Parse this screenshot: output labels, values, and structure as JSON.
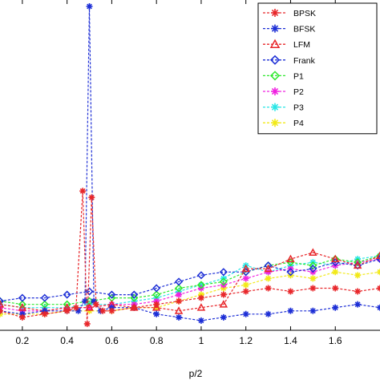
{
  "chart_data": {
    "type": "line",
    "xlabel": "p/2",
    "xlim": [
      0.1,
      1.8
    ],
    "ylim": [
      0,
      1
    ],
    "x_ticks": [
      "0.2",
      "0.4",
      "0.6",
      "0.8",
      "1",
      "1.2",
      "1.4",
      "1.6"
    ],
    "x_tick_values": [
      0.2,
      0.4,
      0.6,
      0.8,
      1.0,
      1.2,
      1.4,
      1.6
    ],
    "legend_position": "top-right",
    "series": [
      {
        "name": "BPSK",
        "color": "#e8272b",
        "marker": "star",
        "x": [
          0.1,
          0.2,
          0.3,
          0.4,
          0.44,
          0.47,
          0.49,
          0.51,
          0.53,
          0.56,
          0.6,
          0.7,
          0.8,
          0.9,
          1.0,
          1.1,
          1.2,
          1.3,
          1.4,
          1.5,
          1.6,
          1.7,
          1.8
        ],
        "y": [
          0.06,
          0.04,
          0.05,
          0.06,
          0.07,
          0.43,
          0.02,
          0.41,
          0.08,
          0.06,
          0.06,
          0.07,
          0.08,
          0.09,
          0.1,
          0.11,
          0.12,
          0.13,
          0.12,
          0.13,
          0.13,
          0.12,
          0.13
        ]
      },
      {
        "name": "BFSK",
        "color": "#1d2fd6",
        "marker": "star",
        "x": [
          0.1,
          0.2,
          0.3,
          0.4,
          0.45,
          0.48,
          0.5,
          0.52,
          0.55,
          0.6,
          0.7,
          0.8,
          0.9,
          1.0,
          1.1,
          1.2,
          1.3,
          1.4,
          1.5,
          1.6,
          1.7,
          1.8
        ],
        "y": [
          0.06,
          0.05,
          0.06,
          0.06,
          0.06,
          0.09,
          1.0,
          0.09,
          0.06,
          0.07,
          0.07,
          0.05,
          0.04,
          0.03,
          0.04,
          0.05,
          0.05,
          0.06,
          0.06,
          0.07,
          0.08,
          0.07
        ]
      },
      {
        "name": "LFM",
        "color": "#e8272b",
        "marker": "triangle",
        "x": [
          0.1,
          0.2,
          0.3,
          0.4,
          0.5,
          0.6,
          0.7,
          0.8,
          0.9,
          1.0,
          1.1,
          1.2,
          1.3,
          1.4,
          1.5,
          1.6,
          1.7,
          1.8
        ],
        "y": [
          0.08,
          0.07,
          0.06,
          0.07,
          0.07,
          0.08,
          0.07,
          0.07,
          0.06,
          0.07,
          0.08,
          0.19,
          0.19,
          0.22,
          0.24,
          0.22,
          0.2,
          0.23
        ]
      },
      {
        "name": "Frank",
        "color": "#1d2fd6",
        "marker": "diamond",
        "x": [
          0.1,
          0.2,
          0.3,
          0.4,
          0.5,
          0.6,
          0.7,
          0.8,
          0.9,
          1.0,
          1.1,
          1.2,
          1.3,
          1.4,
          1.5,
          1.6,
          1.7,
          1.8
        ],
        "y": [
          0.09,
          0.1,
          0.1,
          0.11,
          0.12,
          0.11,
          0.11,
          0.13,
          0.15,
          0.17,
          0.18,
          0.18,
          0.2,
          0.18,
          0.19,
          0.21,
          0.2,
          0.22
        ]
      },
      {
        "name": "P1",
        "color": "#2ee82e",
        "marker": "diamond",
        "x": [
          0.1,
          0.2,
          0.3,
          0.4,
          0.5,
          0.6,
          0.7,
          0.8,
          0.9,
          1.0,
          1.1,
          1.2,
          1.3,
          1.4,
          1.5,
          1.6,
          1.7,
          1.8
        ],
        "y": [
          0.09,
          0.08,
          0.08,
          0.08,
          0.09,
          0.1,
          0.1,
          0.11,
          0.13,
          0.14,
          0.15,
          0.18,
          0.2,
          0.21,
          0.2,
          0.22,
          0.21,
          0.23
        ]
      },
      {
        "name": "P2",
        "color": "#f021e0",
        "marker": "star",
        "x": [
          0.1,
          0.2,
          0.3,
          0.4,
          0.5,
          0.6,
          0.7,
          0.8,
          0.9,
          1.0,
          1.1,
          1.2,
          1.3,
          1.4,
          1.5,
          1.6,
          1.7,
          1.8
        ],
        "y": [
          0.07,
          0.06,
          0.06,
          0.07,
          0.07,
          0.08,
          0.08,
          0.09,
          0.11,
          0.13,
          0.14,
          0.16,
          0.18,
          0.19,
          0.18,
          0.2,
          0.21,
          0.22
        ]
      },
      {
        "name": "P3",
        "color": "#29e6e6",
        "marker": "star",
        "x": [
          0.1,
          0.2,
          0.3,
          0.4,
          0.5,
          0.6,
          0.7,
          0.8,
          0.9,
          1.0,
          1.1,
          1.2,
          1.3,
          1.4,
          1.5,
          1.6,
          1.7,
          1.8
        ],
        "y": [
          0.08,
          0.07,
          0.07,
          0.07,
          0.08,
          0.08,
          0.09,
          0.1,
          0.12,
          0.14,
          0.16,
          0.2,
          0.18,
          0.2,
          0.21,
          0.2,
          0.22,
          0.23
        ]
      },
      {
        "name": "P4",
        "color": "#f2e918",
        "marker": "star",
        "x": [
          0.1,
          0.2,
          0.3,
          0.4,
          0.5,
          0.6,
          0.7,
          0.8,
          0.9,
          1.0,
          1.1,
          1.2,
          1.3,
          1.4,
          1.5,
          1.6,
          1.7,
          1.8
        ],
        "y": [
          0.05,
          0.05,
          0.05,
          0.06,
          0.06,
          0.06,
          0.07,
          0.07,
          0.09,
          0.11,
          0.13,
          0.14,
          0.16,
          0.17,
          0.16,
          0.18,
          0.17,
          0.18
        ]
      }
    ]
  }
}
